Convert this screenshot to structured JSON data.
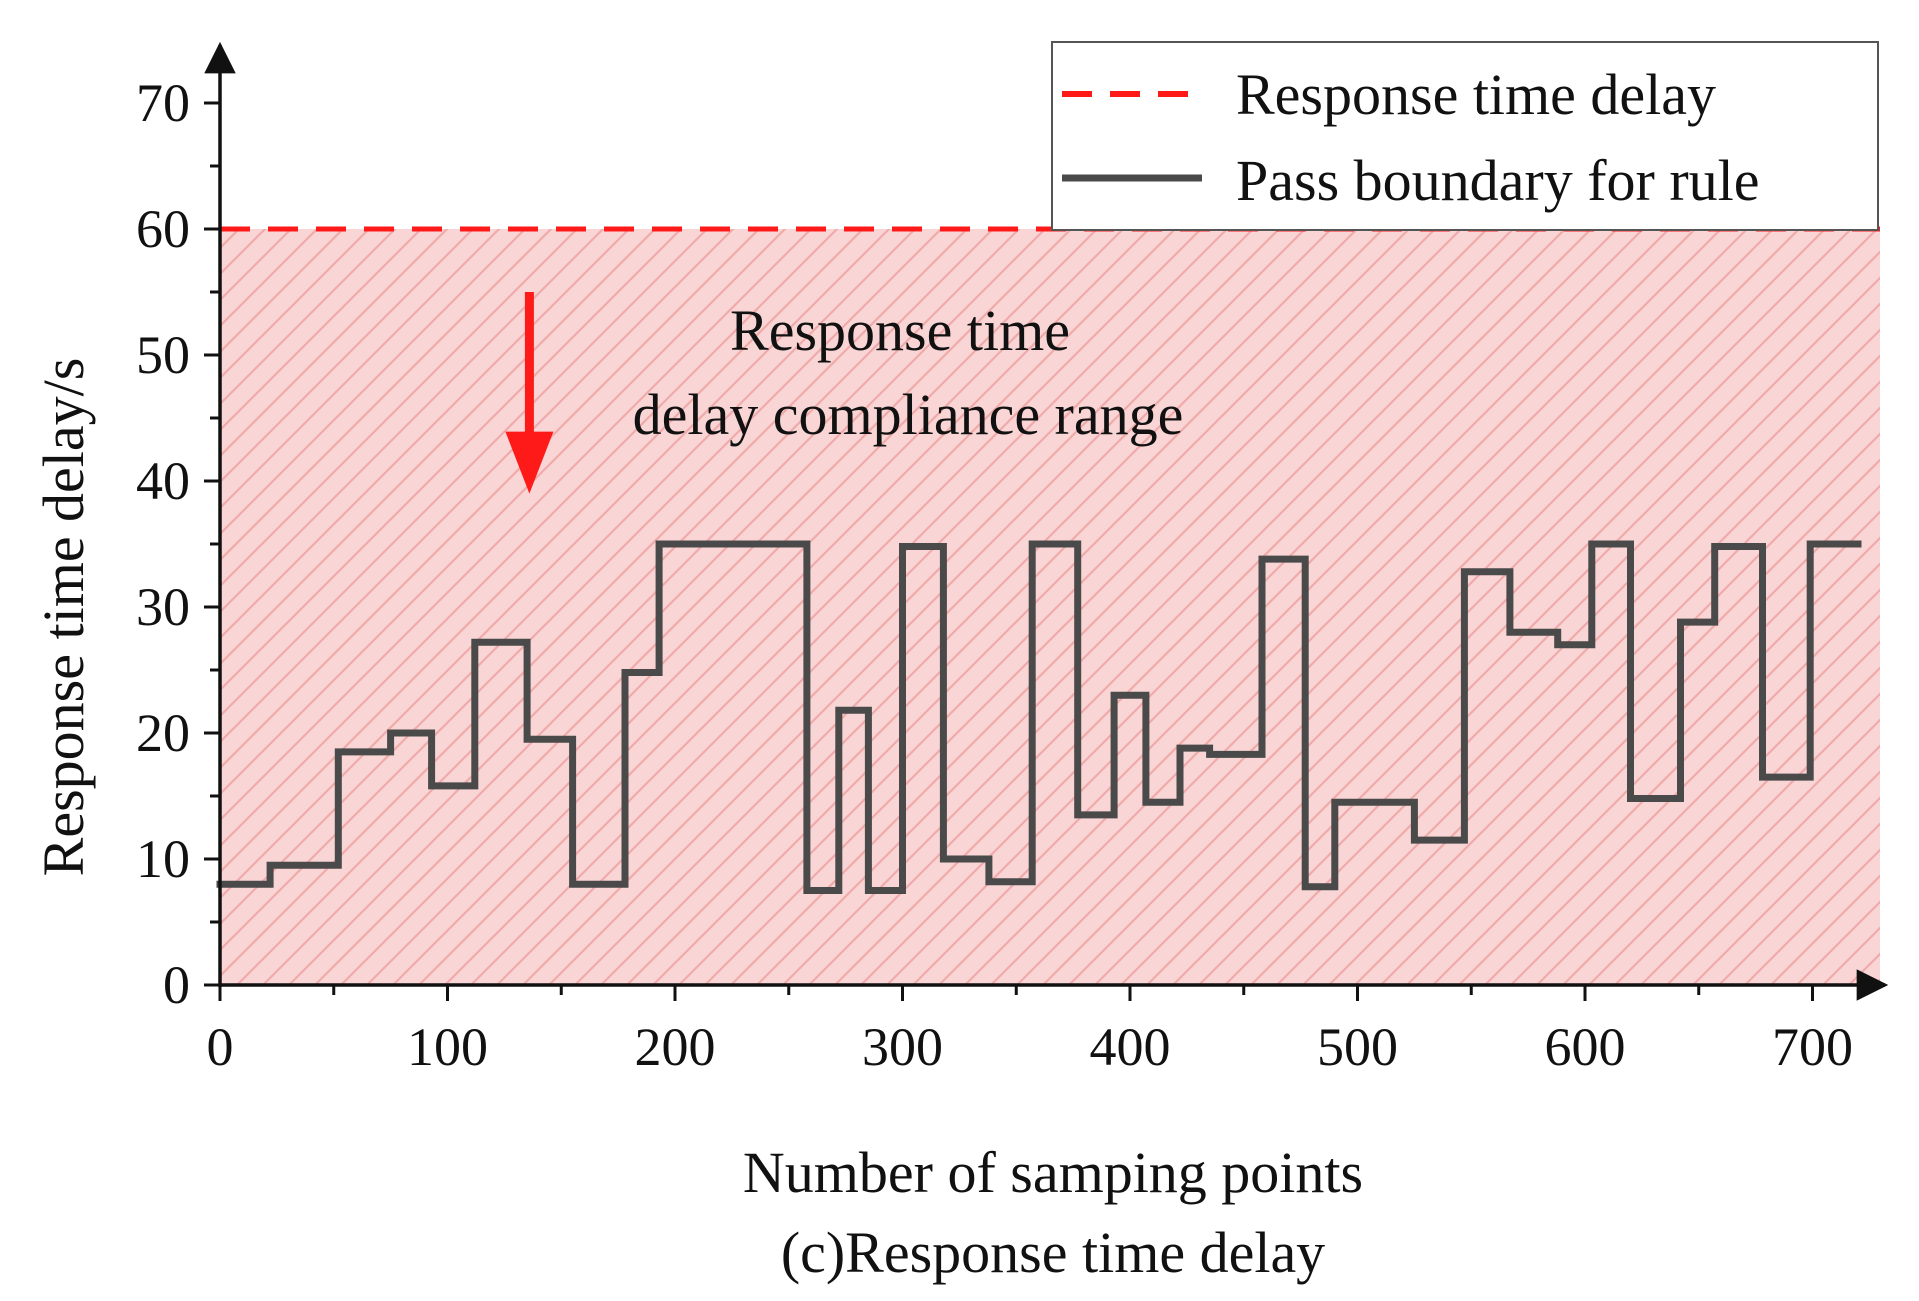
{
  "chart_data": {
    "type": "line",
    "step": true,
    "title": "(c)Response time delay",
    "xlabel": "Number of samping points",
    "ylabel": "Response time delay/s",
    "xlim": [
      0,
      730
    ],
    "ylim": [
      0,
      75
    ],
    "xticks": [
      0,
      100,
      200,
      300,
      400,
      500,
      600,
      700
    ],
    "yticks": [
      0,
      10,
      20,
      30,
      40,
      50,
      60,
      70
    ],
    "legend": {
      "position": "top-right",
      "entries": [
        "Response time delay",
        "Pass boundary for rule"
      ]
    },
    "threshold": {
      "name": "Response time delay",
      "value": 60,
      "color": "#ff1a1a"
    },
    "compliance_region": {
      "from": 0,
      "to": 60,
      "color": "#f9d5d5",
      "hatch_color": "#f0aaaa"
    },
    "annotation": {
      "line1": "Response time",
      "line2": "delay compliance range",
      "arrow_x": 136,
      "arrow_from": 55,
      "arrow_to": 39
    },
    "series": [
      {
        "name": "Pass boundary for rule",
        "color": "#4a4a4a",
        "points": [
          [
            0,
            8
          ],
          [
            22,
            8
          ],
          [
            22,
            9.5
          ],
          [
            52,
            9.5
          ],
          [
            52,
            18.5
          ],
          [
            75,
            18.5
          ],
          [
            75,
            20
          ],
          [
            93,
            20
          ],
          [
            93,
            15.8
          ],
          [
            112,
            15.8
          ],
          [
            112,
            27.2
          ],
          [
            135,
            27.2
          ],
          [
            135,
            19.5
          ],
          [
            155,
            19.5
          ],
          [
            155,
            8
          ],
          [
            178,
            8
          ],
          [
            178,
            24.8
          ],
          [
            193,
            24.8
          ],
          [
            193,
            35
          ],
          [
            258,
            35
          ],
          [
            258,
            7.5
          ],
          [
            272,
            7.5
          ],
          [
            272,
            21.8
          ],
          [
            285,
            21.8
          ],
          [
            285,
            7.5
          ],
          [
            300,
            7.5
          ],
          [
            300,
            34.8
          ],
          [
            318,
            34.8
          ],
          [
            318,
            10
          ],
          [
            338,
            10
          ],
          [
            338,
            8.2
          ],
          [
            357,
            8.2
          ],
          [
            357,
            35
          ],
          [
            377,
            35
          ],
          [
            377,
            13.5
          ],
          [
            393,
            13.5
          ],
          [
            393,
            23
          ],
          [
            407,
            23
          ],
          [
            407,
            14.5
          ],
          [
            422,
            14.5
          ],
          [
            422,
            18.8
          ],
          [
            435,
            18.8
          ],
          [
            435,
            18.3
          ],
          [
            458,
            18.3
          ],
          [
            458,
            33.8
          ],
          [
            477,
            33.8
          ],
          [
            477,
            7.8
          ],
          [
            490,
            7.8
          ],
          [
            490,
            14.5
          ],
          [
            525,
            14.5
          ],
          [
            525,
            11.5
          ],
          [
            547,
            11.5
          ],
          [
            547,
            32.8
          ],
          [
            567,
            32.8
          ],
          [
            567,
            28
          ],
          [
            588,
            28
          ],
          [
            588,
            27
          ],
          [
            603,
            27
          ],
          [
            603,
            35
          ],
          [
            620,
            35
          ],
          [
            620,
            14.8
          ],
          [
            642,
            14.8
          ],
          [
            642,
            28.8
          ],
          [
            657,
            28.8
          ],
          [
            657,
            34.8
          ],
          [
            678,
            34.8
          ],
          [
            678,
            16.5
          ],
          [
            699,
            16.5
          ],
          [
            699,
            35
          ],
          [
            720,
            35
          ]
        ]
      }
    ]
  }
}
